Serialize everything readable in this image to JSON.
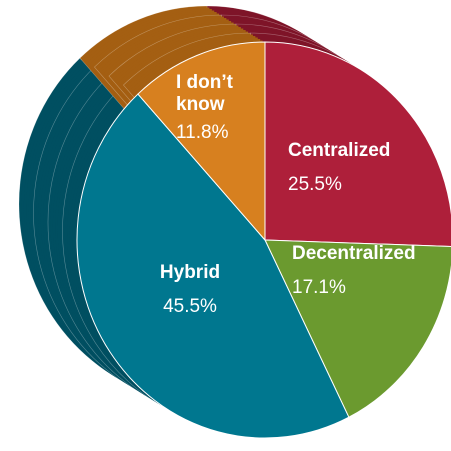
{
  "chart_data": {
    "type": "pie",
    "categories": [
      "Centralized",
      "Decentralized",
      "Hybrid",
      "I don’t know"
    ],
    "values": [
      25.5,
      17.1,
      45.5,
      11.8
    ],
    "value_labels": [
      "25.5%",
      "17.1%",
      "45.5%",
      "11.8%"
    ],
    "colors": [
      "#ae1f3a",
      "#6b9a2f",
      "#00778f",
      "#d7801f"
    ],
    "side_colors": [
      "#7e1428",
      "#4c6f20",
      "#004f61",
      "#a45f12"
    ]
  }
}
